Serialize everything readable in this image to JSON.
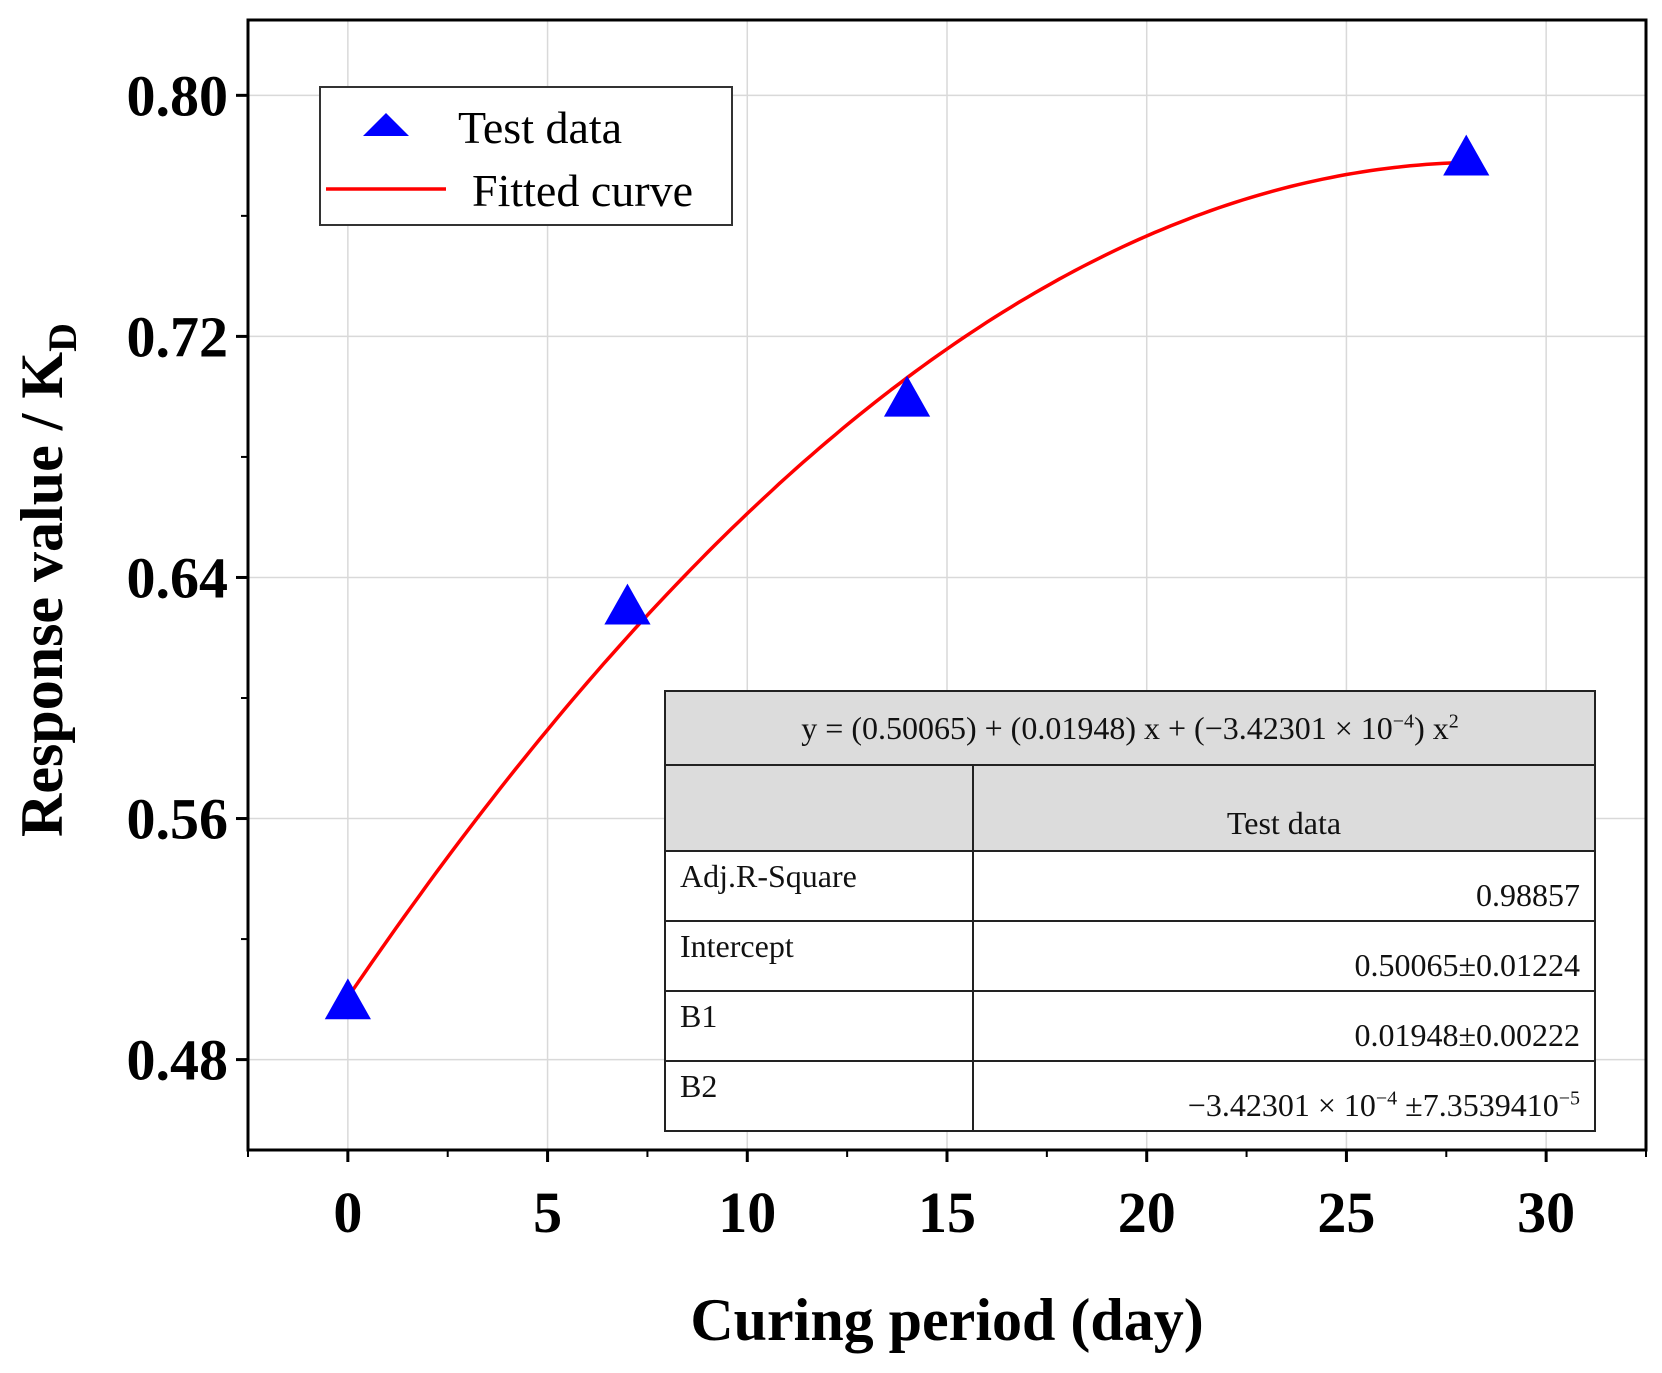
{
  "chart_data": {
    "type": "scatter",
    "title": "",
    "xlabel": "Curing period (day)",
    "ylabel": "Response value / K",
    "ylabel_subscript": "D",
    "xlim": [
      -2.5,
      32.5
    ],
    "ylim": [
      0.45,
      0.825
    ],
    "xticks": [
      0,
      5,
      10,
      15,
      20,
      25,
      30
    ],
    "xtick_labels": [
      "0",
      "5",
      "10",
      "15",
      "20",
      "25",
      "30"
    ],
    "yticks": [
      0.48,
      0.56,
      0.64,
      0.72,
      0.8
    ],
    "ytick_labels": [
      "0.48",
      "0.56",
      "0.64",
      "0.72",
      "0.80"
    ],
    "grid": true,
    "legend_position": "top-left",
    "series": [
      {
        "name": "Test data",
        "kind": "scatter",
        "marker": "triangle",
        "color": "#0000ff",
        "x": [
          0,
          7,
          14,
          28
        ],
        "y": [
          0.5,
          0.631,
          0.7,
          0.78
        ]
      },
      {
        "name": "Fitted curve",
        "kind": "line",
        "color": "#ff0000",
        "coefficients": [
          0.50065,
          0.01948,
          -0.000342301
        ],
        "x_range": [
          0,
          28
        ]
      }
    ],
    "fit_table": {
      "equation": {
        "lead": "y =  (0.50065) + (0.01948) x + (−3.42301 × 10",
        "exp1": "−4",
        "mid": ") x",
        "exp2": "2"
      },
      "column_header": "Test data",
      "rows": [
        {
          "name": "Adj.R-Square",
          "value": "0.98857"
        },
        {
          "name": "Intercept",
          "value": "0.50065±0.01224"
        },
        {
          "name": "B1",
          "value": "0.01948±0.00222"
        }
      ],
      "b2": {
        "name": "B2",
        "v1": "−3.42301 × 10",
        "e1": "−4",
        "v2": " ±7.3539410",
        "e2": "−5"
      }
    }
  }
}
